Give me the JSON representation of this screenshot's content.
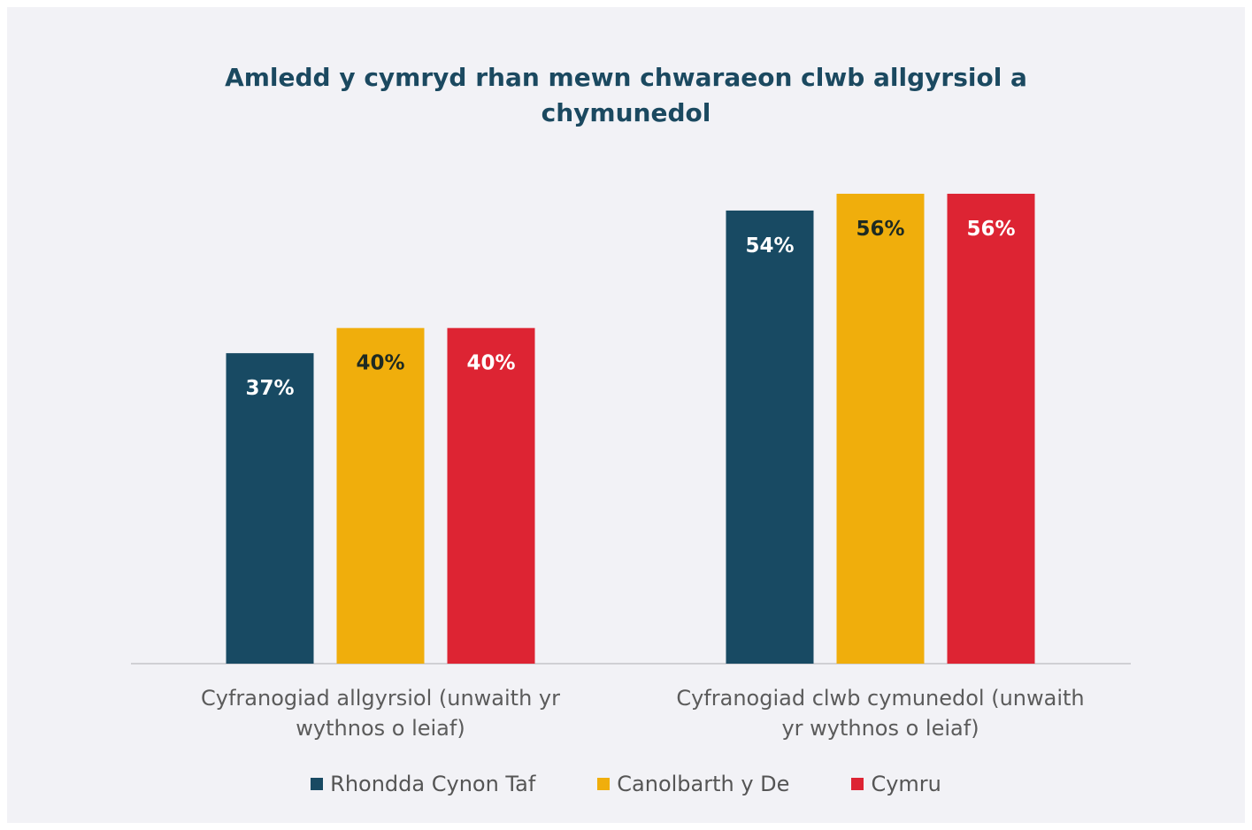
{
  "chart_data": {
    "type": "bar",
    "title": "Amledd y cymryd rhan mewn chwaraeon clwb allgyrsiol a chymunedol",
    "title_lines": [
      "Amledd y cymryd rhan mewn chwaraeon clwb allgyrsiol a",
      "chymunedol"
    ],
    "categories": [
      "Cyfranogiad allgyrsiol (unwaith yr wythnos o leiaf)",
      "Cyfranogiad clwb cymunedol (unwaith yr wythnos o leiaf)"
    ],
    "category_lines": [
      [
        "Cyfranogiad allgyrsiol (unwaith yr",
        "wythnos o leiaf)"
      ],
      [
        "Cyfranogiad clwb cymunedol (unwaith",
        "yr wythnos o leiaf)"
      ]
    ],
    "series": [
      {
        "name": "Rhondda Cynon Taf",
        "values": [
          37,
          54
        ],
        "color": "#184a63",
        "label_color": "#ffffff"
      },
      {
        "name": "Canolbarth y De",
        "values": [
          40,
          56
        ],
        "color": "#f0ae0c",
        "label_color": "#1e2a22"
      },
      {
        "name": "Cymru",
        "values": [
          40,
          56
        ],
        "color": "#dd2433",
        "label_color": "#ffffff"
      }
    ],
    "value_suffix": "%",
    "ylim": [
      0,
      58
    ],
    "grid": false,
    "legend_position": "bottom",
    "xlabel": "",
    "ylabel": ""
  }
}
